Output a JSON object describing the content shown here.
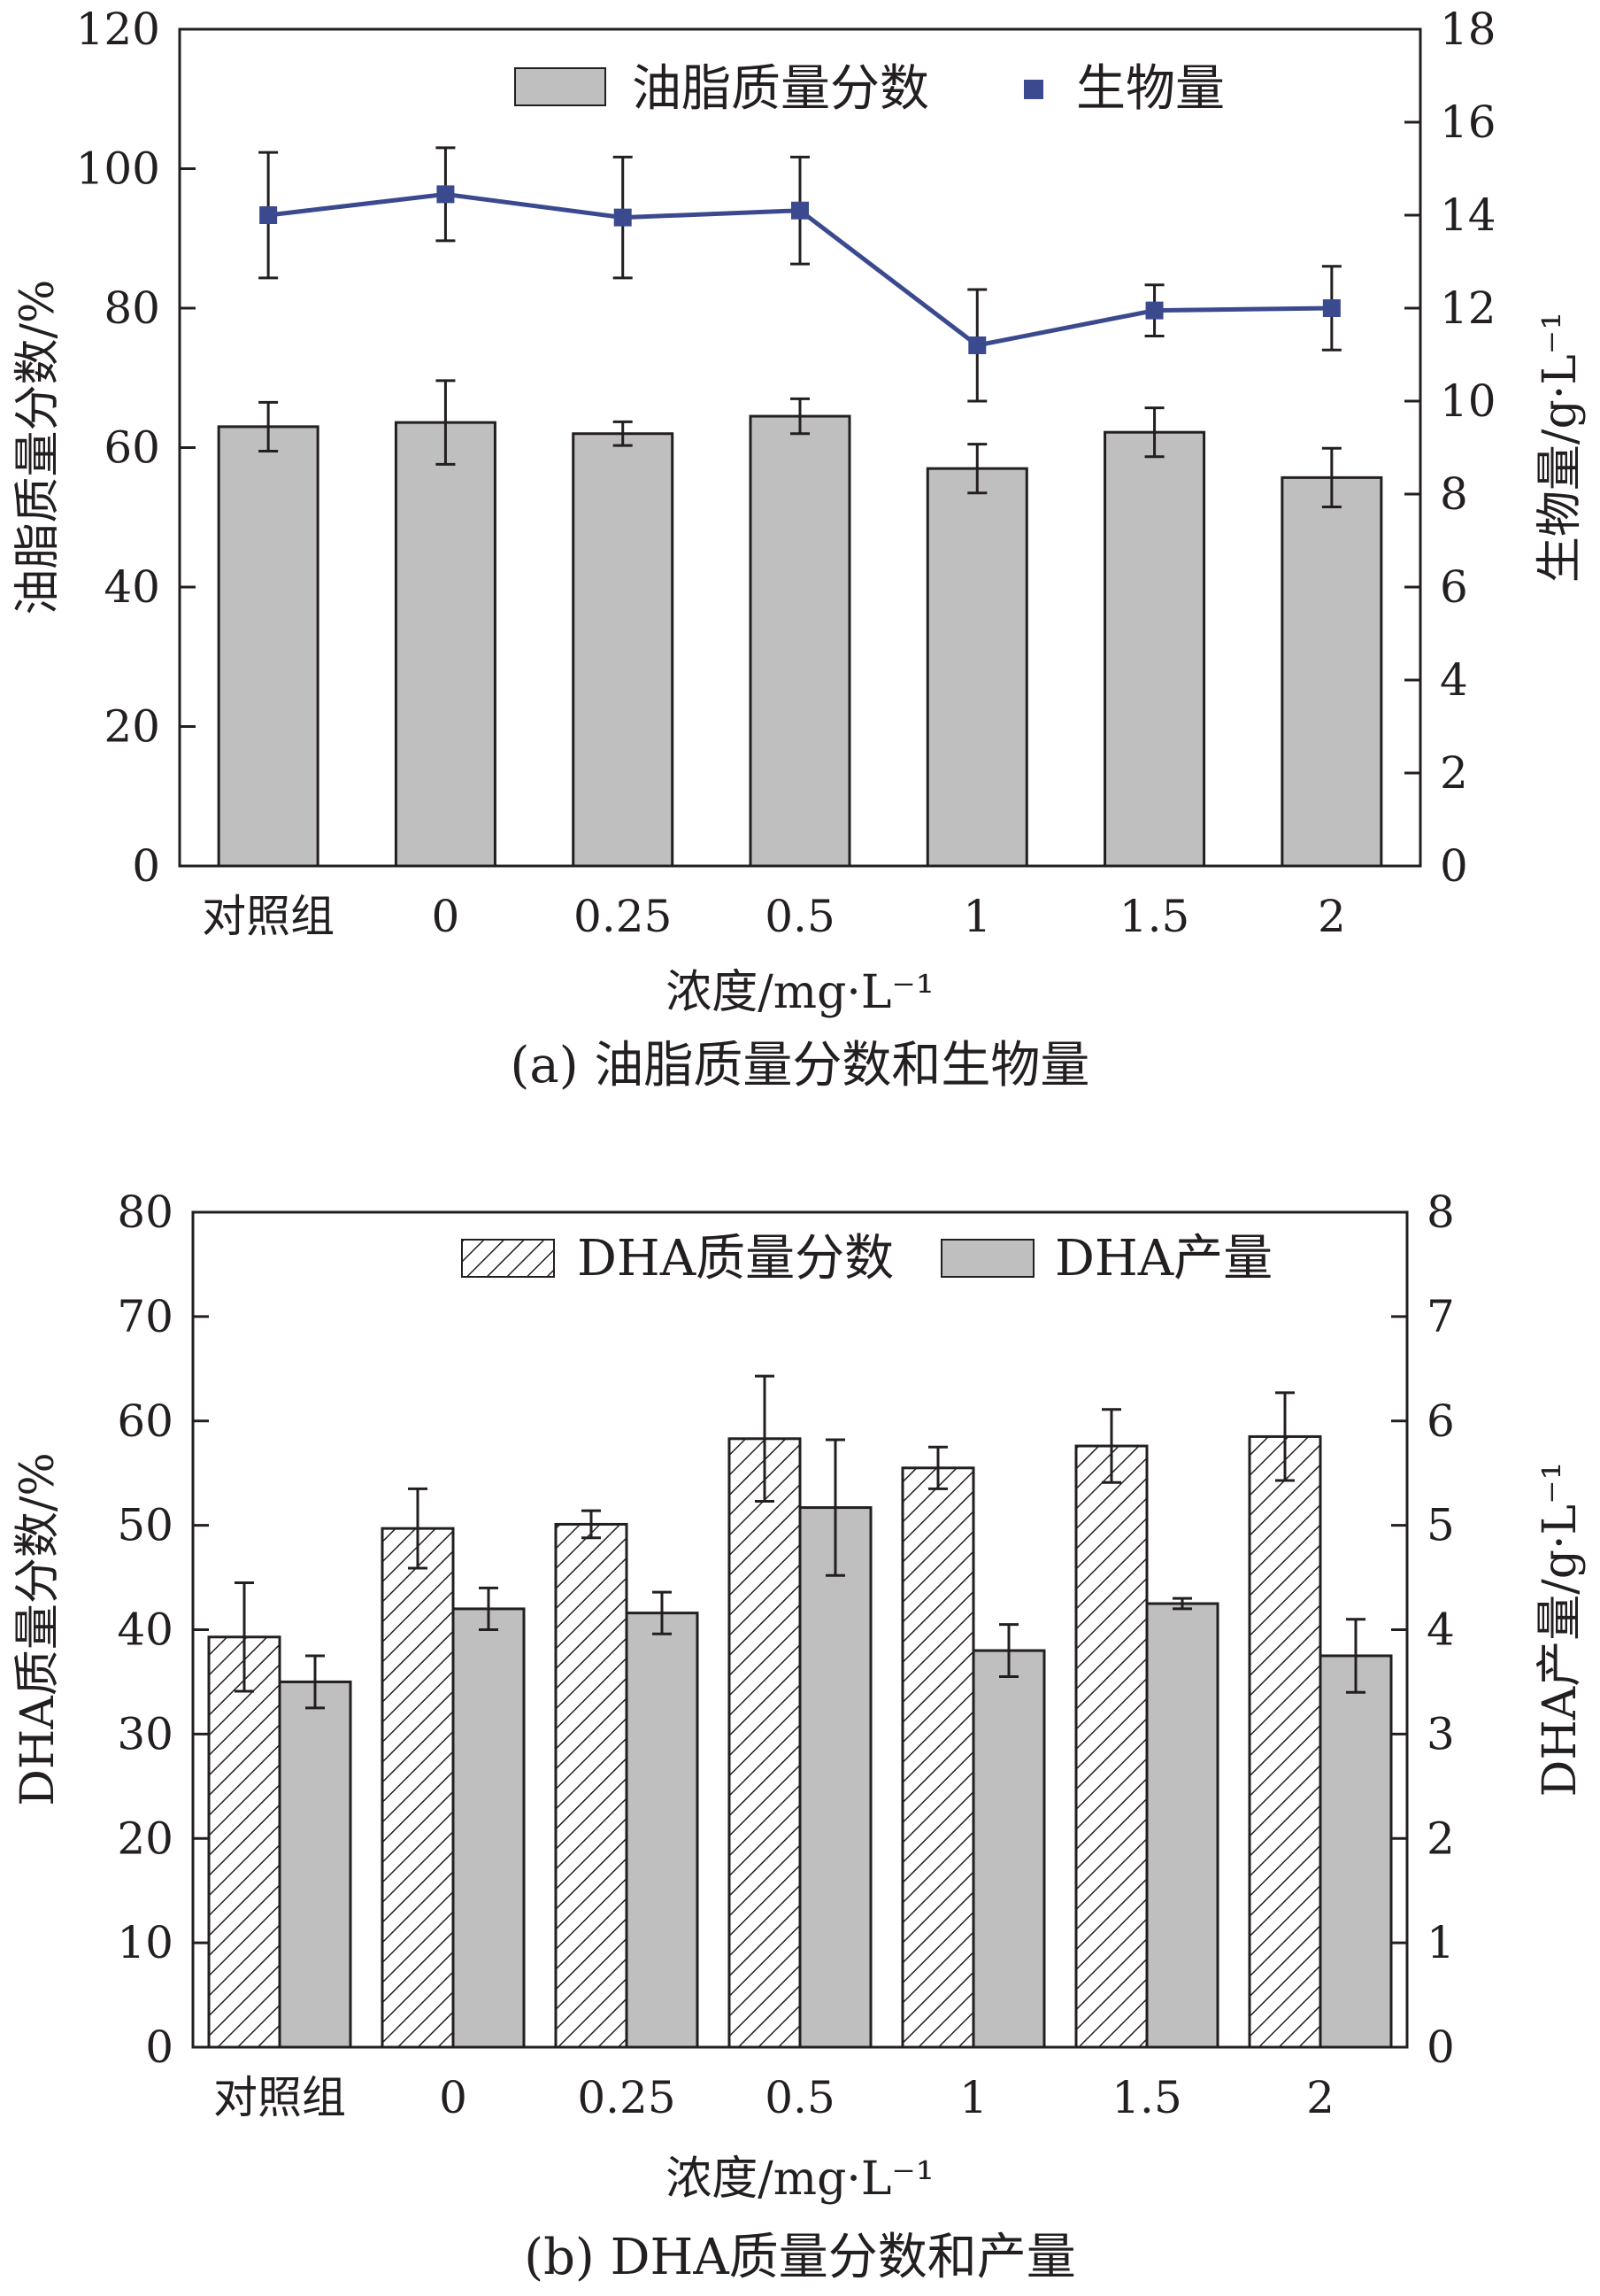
{
  "chart_data": [
    {
      "id": "a",
      "type": "bar+line",
      "caption": "(a) 油脂质量分数和生物量",
      "xlabel": "浓度/mg·L⁻¹",
      "ylabel_left": "油脂质量分数/%",
      "ylabel_right": "生物量/g·L⁻¹",
      "categories": [
        "对照组",
        "0",
        "0.25",
        "0.5",
        "1",
        "1.5",
        "2"
      ],
      "ylim_left": [
        0,
        120
      ],
      "yticks_left": [
        0,
        20,
        40,
        60,
        80,
        100,
        120
      ],
      "ylim_right": [
        0,
        18
      ],
      "yticks_right": [
        0,
        2,
        4,
        6,
        8,
        10,
        12,
        14,
        16,
        18
      ],
      "series": [
        {
          "name": "油脂质量分数",
          "kind": "bar",
          "axis": "left",
          "color": "#bfbfbf",
          "values": [
            63.0,
            63.6,
            62.0,
            64.5,
            57.0,
            62.2,
            55.7
          ],
          "errors": [
            3.5,
            6.0,
            1.7,
            2.5,
            3.5,
            3.5,
            4.2
          ]
        },
        {
          "name": "生物量",
          "kind": "line",
          "axis": "right",
          "color": "#3b4a8f",
          "values": [
            14.0,
            14.45,
            13.95,
            14.1,
            11.2,
            11.95,
            12.0
          ],
          "errors": [
            1.35,
            1.0,
            1.3,
            1.15,
            1.2,
            0.55,
            0.9
          ]
        }
      ],
      "legend": [
        "油脂质量分数",
        "生物量"
      ],
      "legend_position": "top"
    },
    {
      "id": "b",
      "type": "bar",
      "caption": "(b) DHA质量分数和产量",
      "xlabel": "浓度/mg·L⁻¹",
      "ylabel_left": "DHA质量分数/%",
      "ylabel_right": "DHA产量/g·L⁻¹",
      "categories": [
        "对照组",
        "0",
        "0.25",
        "0.5",
        "1",
        "1.5",
        "2"
      ],
      "ylim_left": [
        0,
        80
      ],
      "yticks_left": [
        0,
        10,
        20,
        30,
        40,
        50,
        60,
        70,
        80
      ],
      "ylim_right": [
        0,
        8
      ],
      "yticks_right": [
        0,
        1,
        2,
        3,
        4,
        5,
        6,
        7,
        8
      ],
      "series": [
        {
          "name": "DHA质量分数",
          "kind": "bar",
          "pattern": "hatch",
          "axis": "left",
          "values": [
            39.3,
            49.7,
            50.1,
            58.3,
            55.5,
            57.6,
            58.5
          ],
          "errors": [
            5.2,
            3.8,
            1.3,
            6.0,
            2.0,
            3.5,
            4.2
          ]
        },
        {
          "name": "DHA产量",
          "kind": "bar",
          "axis": "right",
          "color": "#bfbfbf",
          "values": [
            3.5,
            4.2,
            4.16,
            5.17,
            3.8,
            4.25,
            3.75
          ],
          "errors": [
            0.25,
            0.2,
            0.2,
            0.65,
            0.25,
            0.05,
            0.35
          ]
        }
      ],
      "legend": [
        "DHA质量分数",
        "DHA产量"
      ],
      "legend_position": "top"
    }
  ]
}
